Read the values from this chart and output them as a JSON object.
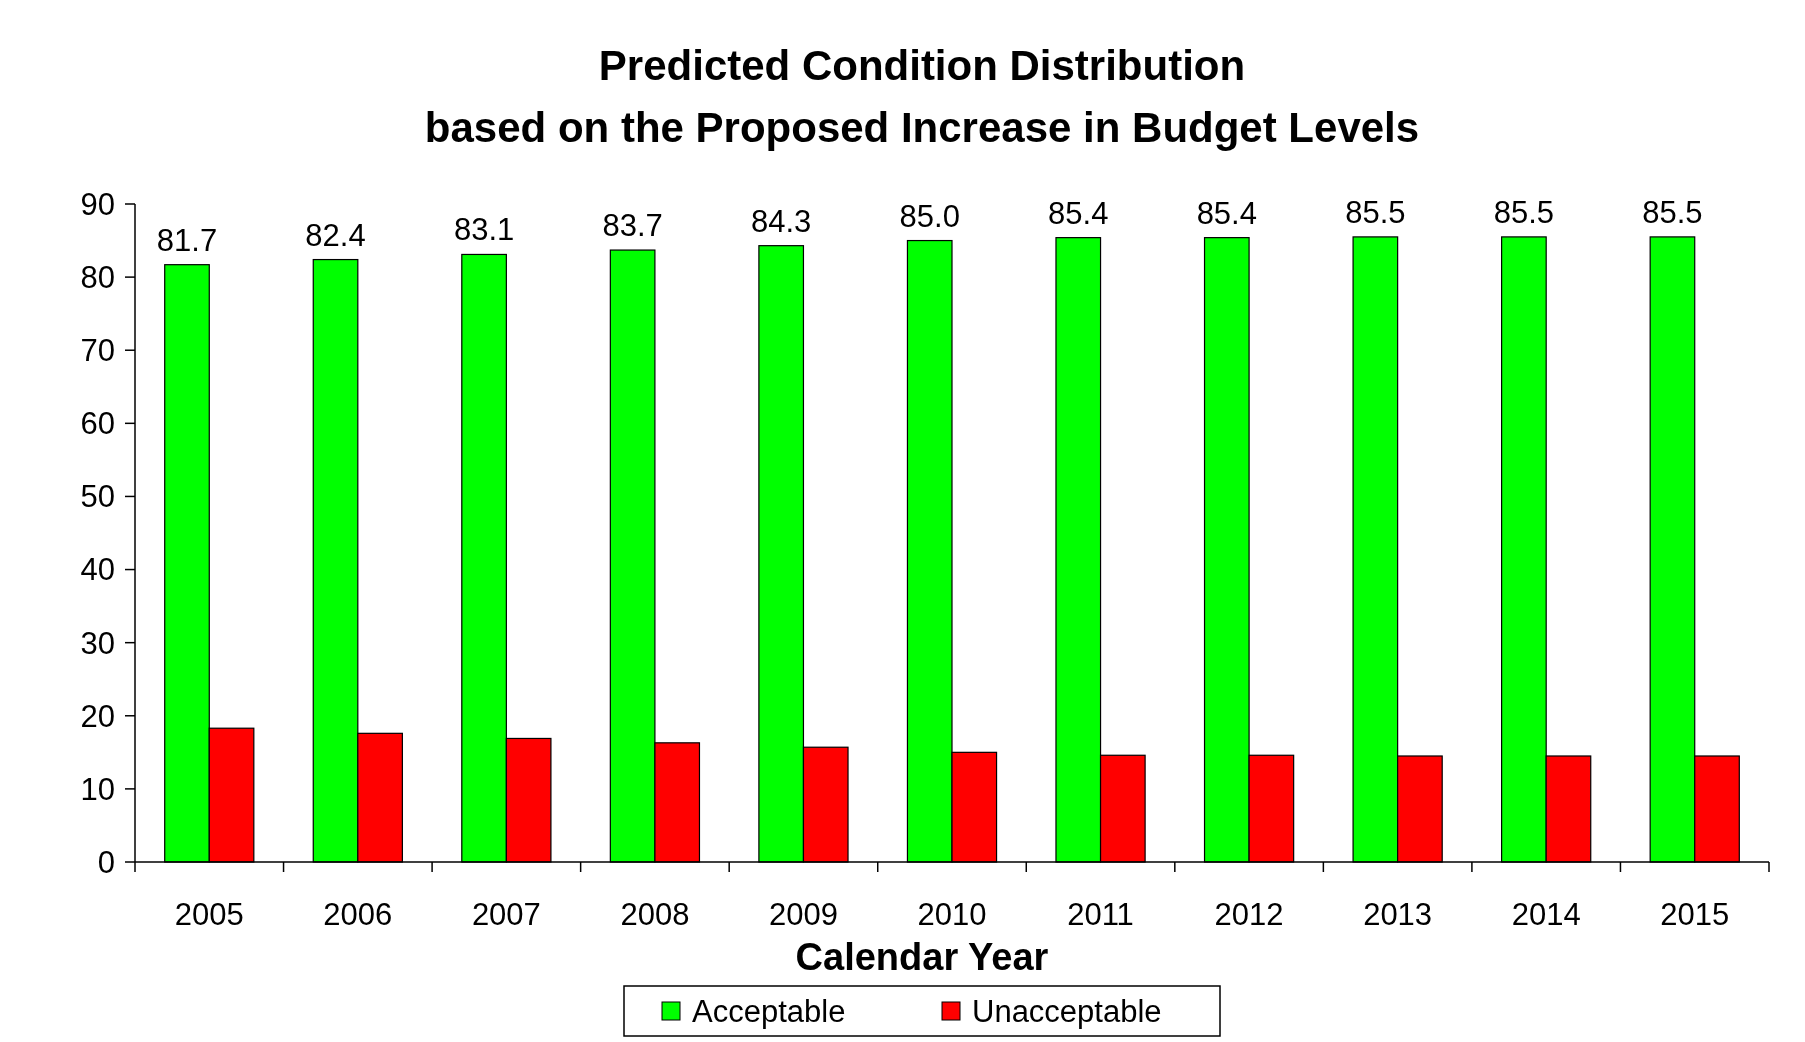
{
  "chart_data": {
    "type": "bar",
    "title": "Predicted Condition Distribution\nbased on the Proposed Increase in Budget Levels",
    "xlabel": "Calendar Year",
    "categories": [
      "2005",
      "2006",
      "2007",
      "2008",
      "2009",
      "2010",
      "2011",
      "2012",
      "2013",
      "2014",
      "2015"
    ],
    "series": [
      {
        "name": "Acceptable",
        "color": "#00ff00",
        "values": [
          81.7,
          82.4,
          83.1,
          83.7,
          84.3,
          85.0,
          85.4,
          85.4,
          85.5,
          85.5,
          85.5
        ],
        "value_labels": [
          "81.7",
          "82.4",
          "83.1",
          "83.7",
          "84.3",
          "85.0",
          "85.4",
          "85.4",
          "85.5",
          "85.5",
          "85.5"
        ]
      },
      {
        "name": "Unacceptable",
        "color": "#ff0000",
        "values": [
          18.3,
          17.6,
          16.9,
          16.3,
          15.7,
          15.0,
          14.6,
          14.6,
          14.5,
          14.5,
          14.5
        ]
      }
    ],
    "ylim": [
      0,
      90
    ],
    "yticks": [
      0,
      10,
      20,
      30,
      40,
      50,
      60,
      70,
      80,
      90
    ],
    "grid": false,
    "legend": "bottom"
  }
}
